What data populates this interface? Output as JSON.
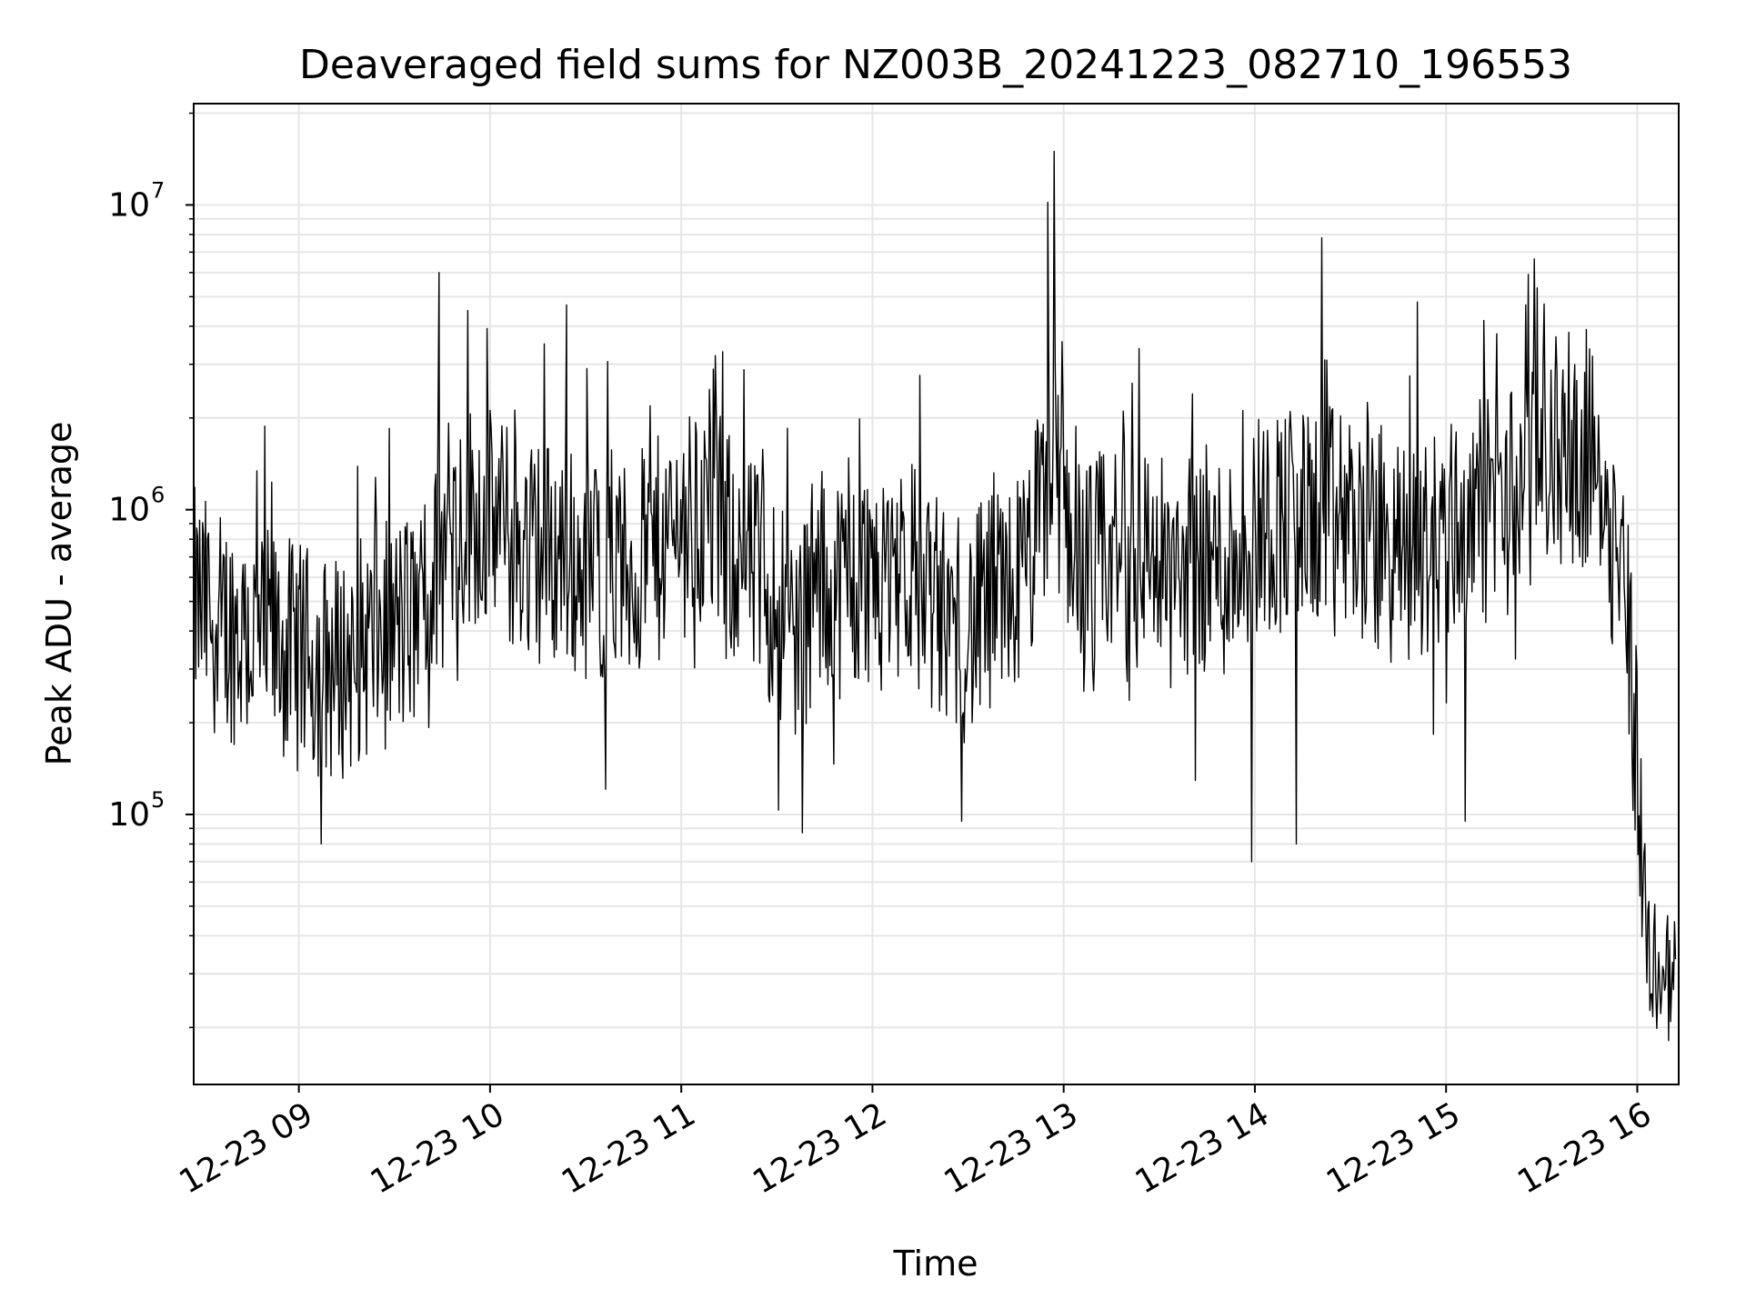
{
  "chart_data": {
    "type": "line",
    "title": "Deaveraged field sums for NZ003B_20241223_082710_196553",
    "xlabel": "Time",
    "ylabel": "Peak ADU - average",
    "yscale": "log",
    "ylim": [
      13000,
      21500000
    ],
    "xlim": [
      "12-23 08:27",
      "12-23 16:13"
    ],
    "x_ticks": [
      "12-23 09",
      "12-23 10",
      "12-23 11",
      "12-23 12",
      "12-23 13",
      "12-23 14",
      "12-23 15",
      "12-23 16"
    ],
    "y_ticks": [
      {
        "base": "10",
        "exp": "5",
        "value": 100000
      },
      {
        "base": "10",
        "exp": "6",
        "value": 1000000
      },
      {
        "base": "10",
        "exp": "7",
        "value": 10000000
      }
    ],
    "grid": true,
    "line_color": "#000000",
    "series": [
      {
        "name": "",
        "x": [
          "12-23 08:27",
          "12-23 08:36",
          "12-23 08:45",
          "12-23 08:54",
          "12-23 09:03",
          "12-23 09:12",
          "12-23 09:21",
          "12-23 09:30",
          "12-23 09:39",
          "12-23 09:48",
          "12-23 09:57",
          "12-23 10:06",
          "12-23 10:15",
          "12-23 10:24",
          "12-23 10:33",
          "12-23 10:42",
          "12-23 10:51",
          "12-23 11:00",
          "12-23 11:09",
          "12-23 11:18",
          "12-23 11:27",
          "12-23 11:36",
          "12-23 11:45",
          "12-23 11:54",
          "12-23 12:03",
          "12-23 12:12",
          "12-23 12:21",
          "12-23 12:30",
          "12-23 12:39",
          "12-23 12:48",
          "12-23 12:57",
          "12-23 13:06",
          "12-23 13:15",
          "12-23 13:24",
          "12-23 13:33",
          "12-23 13:42",
          "12-23 13:51",
          "12-23 14:00",
          "12-23 14:09",
          "12-23 14:18",
          "12-23 14:27",
          "12-23 14:36",
          "12-23 14:45",
          "12-23 14:54",
          "12-23 15:03",
          "12-23 15:12",
          "12-23 15:21",
          "12-23 15:30",
          "12-23 15:39",
          "12-23 15:48",
          "12-23 15:57",
          "12-23 16:03",
          "12-23 16:08",
          "12-23 16:12"
        ],
        "values": [
          500000,
          420000,
          380000,
          350000,
          320000,
          300000,
          360000,
          400000,
          450000,
          900000,
          1000000,
          800000,
          750000,
          700000,
          650000,
          600000,
          700000,
          900000,
          950000,
          700000,
          550000,
          400000,
          600000,
          550000,
          700000,
          650000,
          450000,
          400000,
          500000,
          600000,
          1400000,
          600000,
          700000,
          800000,
          600000,
          700000,
          650000,
          900000,
          950000,
          900000,
          950000,
          800000,
          700000,
          750000,
          900000,
          1000000,
          1100000,
          1500000,
          1600000,
          1400000,
          500000,
          35000,
          30000,
          28000
        ]
      }
    ],
    "spikes": [
      {
        "x": "12-23 09:44",
        "y": 6000000
      },
      {
        "x": "12-23 09:53",
        "y": 4500000
      },
      {
        "x": "12-23 10:17",
        "y": 3500000
      },
      {
        "x": "12-23 10:24",
        "y": 4700000
      },
      {
        "x": "12-23 11:13",
        "y": 3300000
      },
      {
        "x": "12-23 12:55",
        "y": 10200000
      },
      {
        "x": "12-23 12:57",
        "y": 15000000
      },
      {
        "x": "12-23 14:21",
        "y": 7800000
      },
      {
        "x": "12-23 14:51",
        "y": 4800000
      },
      {
        "x": "12-23 15:25",
        "y": 4700000
      },
      {
        "x": "12-23 15:44",
        "y": 3900000
      },
      {
        "x": "12-23 09:07",
        "y": 80000
      },
      {
        "x": "12-23 11:38",
        "y": 87000
      },
      {
        "x": "12-23 12:28",
        "y": 95000
      },
      {
        "x": "12-23 13:59",
        "y": 70000
      },
      {
        "x": "12-23 14:13",
        "y": 80000
      },
      {
        "x": "12-23 15:06",
        "y": 95000
      }
    ]
  }
}
